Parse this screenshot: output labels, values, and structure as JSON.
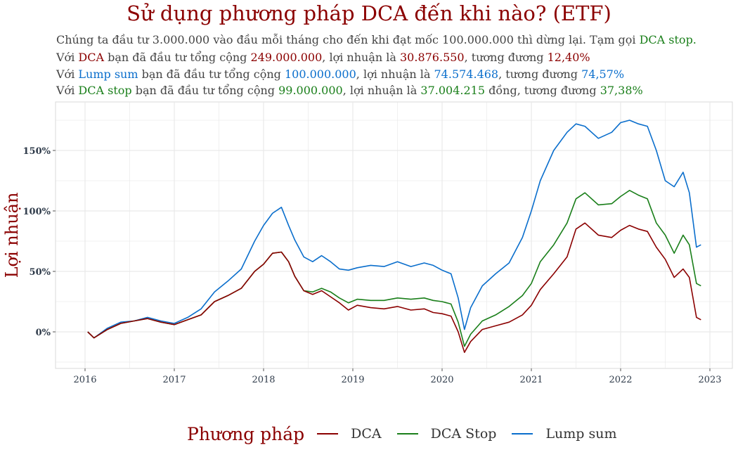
{
  "header": {
    "title": "Sử dụng phương pháp DCA đến khi nào? (ETF)",
    "line1": {
      "text": "Chúng ta đầu tư 3.000.000 vào đầu mỗi tháng cho đến khi đạt mốc 100.000.000 thì dừng lại. Tạm gọi ",
      "highlight": "DCA stop."
    },
    "line2": {
      "p1": "Với ",
      "k": "DCA",
      "p2": " bạn đã đầu tư tổng cộng ",
      "invested": "249.000.000",
      "p3": ", lợi nhuận là ",
      "profit": "30.876.550",
      "p4": ", tương đương ",
      "pct": "12,40%"
    },
    "line3": {
      "p1": "Với ",
      "k": "Lump sum",
      "p2": " bạn đã đầu tư tổng cộng ",
      "invested": "100.000.000",
      "p3": ", lợi nhuận là ",
      "profit": "74.574.468",
      "p4": ", tương đương ",
      "pct": "74,57%"
    },
    "line4": {
      "p1": "Với ",
      "k": "DCA stop",
      "p2": " bạn đã đầu tư tổng cộng ",
      "invested": "99.000.000",
      "p3": ", lợi nhuận là ",
      "profit": "37.004.215",
      "p4": " đồng, tương đương ",
      "pct": "37,38%"
    }
  },
  "colors": {
    "dca": "#8b0000",
    "dca_stop": "#1a7f1a",
    "lump_sum": "#0a6ecc",
    "grid": "#e6e6e6"
  },
  "chart_data": {
    "type": "line",
    "ylabel": "Lợi nhuận",
    "xlabel": "",
    "xlim": [
      2016.0,
      2023.0
    ],
    "ylim": [
      -30,
      180
    ],
    "x_ticks": [
      "2016",
      "2017",
      "2018",
      "2019",
      "2020",
      "2021",
      "2022",
      "2023"
    ],
    "y_ticks": [
      {
        "value": 0,
        "label": "0%"
      },
      {
        "value": 50,
        "label": "50%"
      },
      {
        "value": 100,
        "label": "100%"
      },
      {
        "value": 150,
        "label": "150%"
      }
    ],
    "legend": {
      "title": "Phương pháp",
      "position": "bottom"
    },
    "x": [
      2016.03,
      2016.1,
      2016.25,
      2016.4,
      2016.55,
      2016.7,
      2016.85,
      2017.0,
      2017.15,
      2017.3,
      2017.45,
      2017.6,
      2017.75,
      2017.9,
      2018.0,
      2018.1,
      2018.2,
      2018.28,
      2018.35,
      2018.45,
      2018.55,
      2018.65,
      2018.75,
      2018.85,
      2018.95,
      2019.05,
      2019.2,
      2019.35,
      2019.5,
      2019.65,
      2019.8,
      2019.9,
      2020.0,
      2020.1,
      2020.18,
      2020.25,
      2020.32,
      2020.45,
      2020.6,
      2020.75,
      2020.9,
      2021.0,
      2021.1,
      2021.25,
      2021.4,
      2021.5,
      2021.6,
      2021.75,
      2021.9,
      2022.0,
      2022.1,
      2022.2,
      2022.3,
      2022.4,
      2022.5,
      2022.6,
      2022.7,
      2022.77,
      2022.85,
      2022.9
    ],
    "series": [
      {
        "name": "DCA",
        "values": [
          0,
          -5,
          2,
          7,
          9,
          11,
          8,
          6,
          10,
          14,
          25,
          30,
          36,
          50,
          56,
          65,
          66,
          58,
          46,
          34,
          31,
          34,
          29,
          24,
          18,
          22,
          20,
          19,
          21,
          18,
          19,
          16,
          15,
          13,
          0,
          -17,
          -8,
          2,
          5,
          8,
          14,
          22,
          35,
          48,
          62,
          85,
          90,
          80,
          78,
          84,
          88,
          85,
          83,
          70,
          60,
          45,
          52,
          45,
          12,
          10
        ]
      },
      {
        "name": "DCA Stop",
        "values": [
          0,
          -5,
          2,
          7,
          9,
          11,
          8,
          6,
          10,
          14,
          25,
          30,
          36,
          50,
          56,
          65,
          66,
          58,
          46,
          34,
          33,
          36,
          33,
          28,
          24,
          27,
          26,
          26,
          28,
          27,
          28,
          26,
          25,
          23,
          8,
          -12,
          -2,
          9,
          14,
          21,
          30,
          40,
          58,
          72,
          90,
          110,
          115,
          105,
          106,
          112,
          117,
          113,
          110,
          90,
          80,
          65,
          80,
          72,
          40,
          38
        ]
      },
      {
        "name": "Lump sum",
        "values": [
          0,
          -5,
          3,
          8,
          9,
          12,
          9,
          7,
          12,
          19,
          33,
          42,
          52,
          75,
          88,
          98,
          103,
          88,
          76,
          62,
          58,
          63,
          58,
          52,
          51,
          53,
          55,
          54,
          58,
          54,
          57,
          55,
          51,
          48,
          28,
          2,
          20,
          38,
          48,
          57,
          78,
          100,
          125,
          150,
          165,
          172,
          170,
          160,
          165,
          173,
          175,
          172,
          170,
          150,
          125,
          120,
          132,
          115,
          70,
          72
        ]
      }
    ]
  }
}
